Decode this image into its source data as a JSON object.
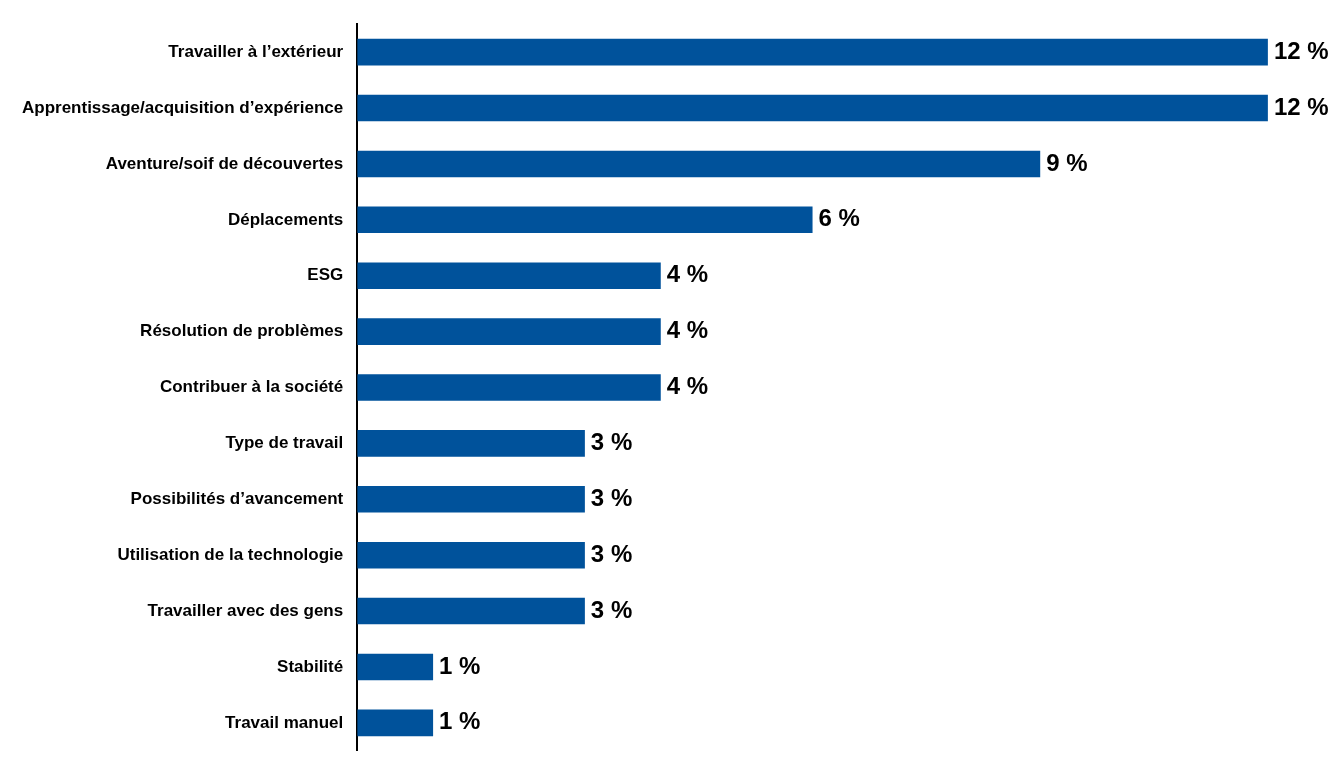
{
  "chart_data": {
    "type": "bar",
    "orientation": "horizontal",
    "categories": [
      "Travailler à l’extérieur",
      "Apprentissage/acquisition d’expérience",
      "Aventure/soif de découvertes",
      "Déplacements",
      "ESG",
      "Résolution de problèmes",
      "Contribuer à la société",
      "Type de travail",
      "Possibilités d’avancement",
      "Utilisation de la technologie",
      "Travailler avec des gens",
      "Stabilité",
      "Travail manuel"
    ],
    "values": [
      12,
      12,
      9,
      6,
      4,
      4,
      4,
      3,
      3,
      3,
      3,
      1,
      1
    ],
    "value_labels": [
      "12 %",
      "12 %",
      "9 %",
      "6 %",
      "4 %",
      "4 %",
      "4 %",
      "3 %",
      "3 %",
      "3 %",
      "3 %",
      "1 %",
      "1 %"
    ],
    "color": "#00529b"
  }
}
